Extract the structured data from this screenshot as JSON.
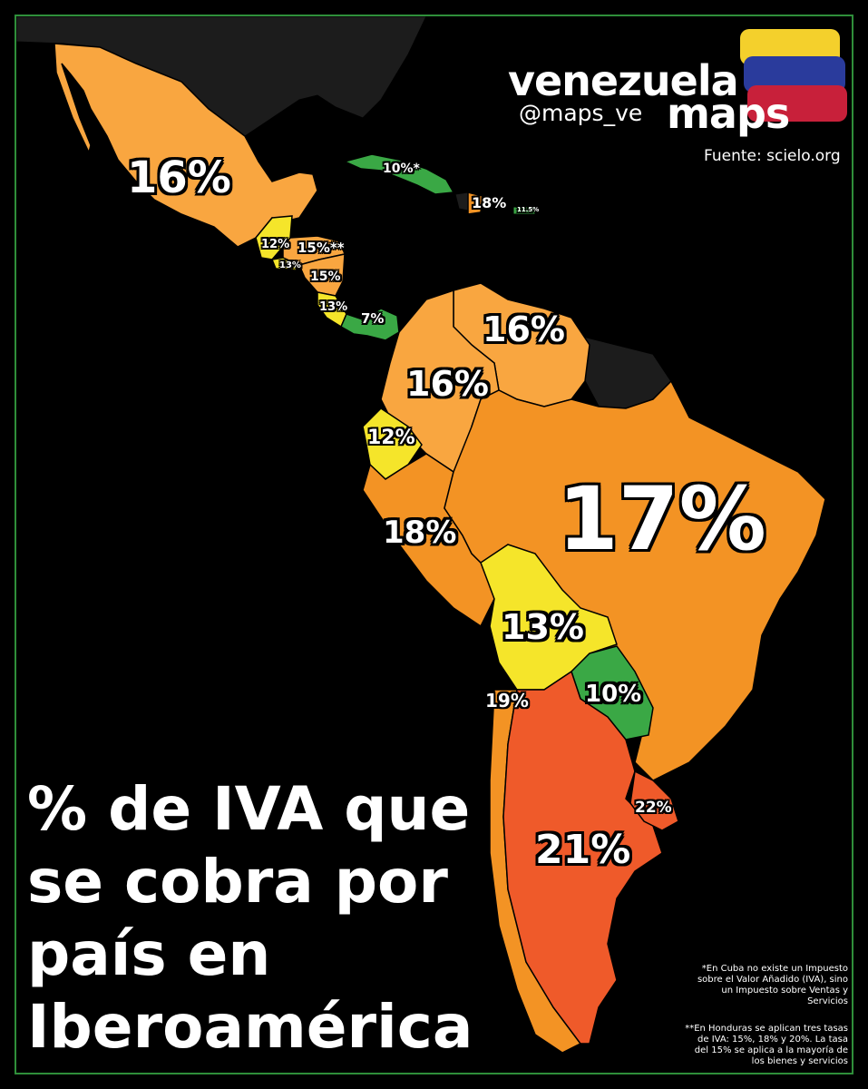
{
  "brand": {
    "line1": "venezuela",
    "line2": "maps",
    "handle": "@maps_ve",
    "source": "Fuente: scielo.org"
  },
  "title_lines": [
    "% de IVA que",
    "se cobra por",
    "país en",
    "Iberoamérica"
  ],
  "notes": {
    "cuba": "*En Cuba no existe un Impuesto sobre el Valor Añadido (IVA), sino un Impuesto sobre Ventas y Servicios",
    "honduras": "**En Honduras se aplican tres tasas de IVA: 15%, 18% y 20%. La tasa del 15% se aplica a la mayoría de los bienes y servicios"
  },
  "colors": {
    "background": "#000000",
    "rate_7_10": "#3aa845",
    "rate_12_13": "#f5e52a",
    "rate_15_16": "#f9a640",
    "rate_17_19": "#f39324",
    "rate_21_22": "#ef5a2a",
    "other_land": "#1c1c1c",
    "flag_yellow": "#f4d02c",
    "flag_blue": "#2a3b9c",
    "flag_red": "#c8203a"
  },
  "countries": [
    {
      "name": "México",
      "rate": "16%"
    },
    {
      "name": "Cuba",
      "rate": "10%*"
    },
    {
      "name": "República Dominicana",
      "rate": "18%"
    },
    {
      "name": "Puerto Rico",
      "rate": "11.5%"
    },
    {
      "name": "Guatemala",
      "rate": "12%"
    },
    {
      "name": "Honduras",
      "rate": "15%**"
    },
    {
      "name": "El Salvador",
      "rate": "13%"
    },
    {
      "name": "Nicaragua",
      "rate": "15%"
    },
    {
      "name": "Costa Rica",
      "rate": "13%"
    },
    {
      "name": "Panamá",
      "rate": "7%"
    },
    {
      "name": "Venezuela",
      "rate": "16%"
    },
    {
      "name": "Colombia",
      "rate": "16%"
    },
    {
      "name": "Ecuador",
      "rate": "12%"
    },
    {
      "name": "Perú",
      "rate": "18%"
    },
    {
      "name": "Brasil",
      "rate": "17%"
    },
    {
      "name": "Bolivia",
      "rate": "13%"
    },
    {
      "name": "Paraguay",
      "rate": "10%"
    },
    {
      "name": "Chile",
      "rate": "19%"
    },
    {
      "name": "Argentina",
      "rate": "21%"
    },
    {
      "name": "Uruguay",
      "rate": "22%"
    }
  ]
}
